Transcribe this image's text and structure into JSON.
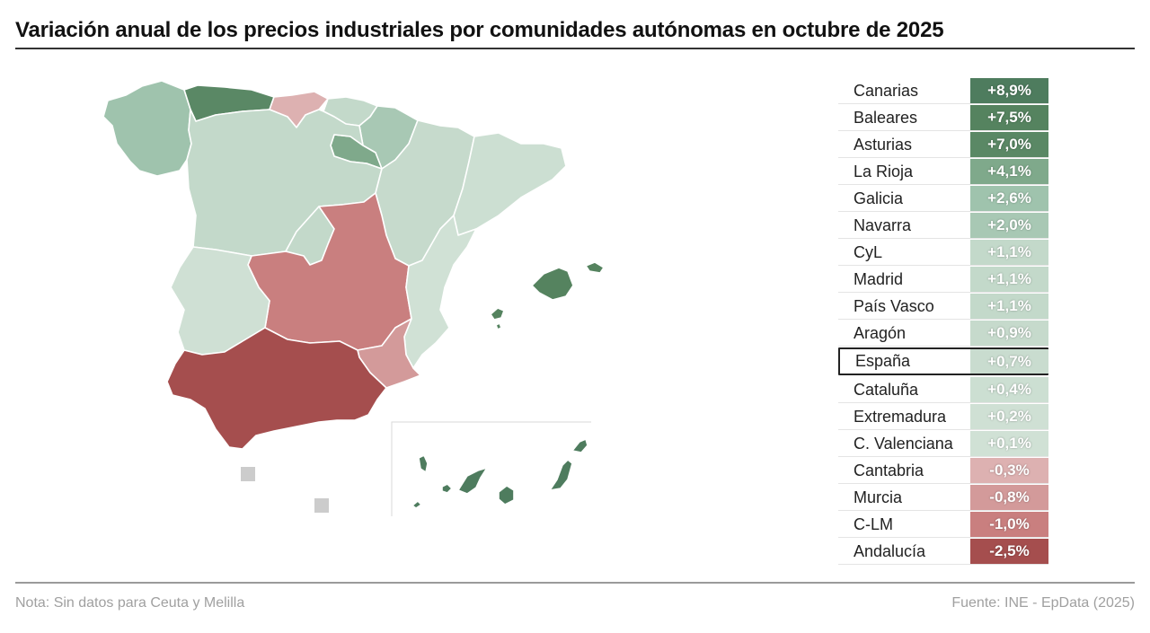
{
  "title": "Variación anual de los precios industriales por comunidades autónomas en octubre de 2025",
  "note": "Nota: Sin datos para Ceuta y Melilla",
  "source": "Fuente: INE - EpData (2025)",
  "colors": {
    "strong_positive": "#4e7c5e",
    "mid_positive": "#5f8f6c",
    "light_positive": "#9fc3ad",
    "pale_positive": "#c9dccf",
    "pale_negative": "#ddb1b1",
    "mid_negative": "#c97f7f",
    "strong_negative": "#a54e4e",
    "no_data": "#cccccc"
  },
  "regions": [
    {
      "name": "Canarias",
      "value": "+8,9%",
      "color": "#4e7c5e"
    },
    {
      "name": "Baleares",
      "value": "+7,5%",
      "color": "#55835f"
    },
    {
      "name": "Asturias",
      "value": "+7,0%",
      "color": "#5a8865"
    },
    {
      "name": "La Rioja",
      "value": "+4,1%",
      "color": "#7fa98b"
    },
    {
      "name": "Galicia",
      "value": "+2,6%",
      "color": "#9fc3ad"
    },
    {
      "name": "Navarra",
      "value": "+2,0%",
      "color": "#a8c8b4"
    },
    {
      "name": "CyL",
      "value": "+1,1%",
      "color": "#c3d9ca"
    },
    {
      "name": "Madrid",
      "value": "+1,1%",
      "color": "#c3d9ca"
    },
    {
      "name": "País Vasco",
      "value": "+1,1%",
      "color": "#c3d9ca"
    },
    {
      "name": "Aragón",
      "value": "+0,9%",
      "color": "#c6dacc"
    },
    {
      "name": "España",
      "value": "+0,7%",
      "color": "#c9dccf",
      "highlight": true
    },
    {
      "name": "Cataluña",
      "value": "+0,4%",
      "color": "#ccdfd2"
    },
    {
      "name": "Extremadura",
      "value": "+0,2%",
      "color": "#cfe0d4"
    },
    {
      "name": "C. Valenciana",
      "value": "+0,1%",
      "color": "#d0e1d5"
    },
    {
      "name": "Cantabria",
      "value": "-0,3%",
      "color": "#ddb1b1"
    },
    {
      "name": "Murcia",
      "value": "-0,8%",
      "color": "#d39a9a"
    },
    {
      "name": "C-LM",
      "value": "-1,0%",
      "color": "#c97f7f"
    },
    {
      "name": "Andalucía",
      "value": "-2,5%",
      "color": "#a54e4e"
    }
  ]
}
